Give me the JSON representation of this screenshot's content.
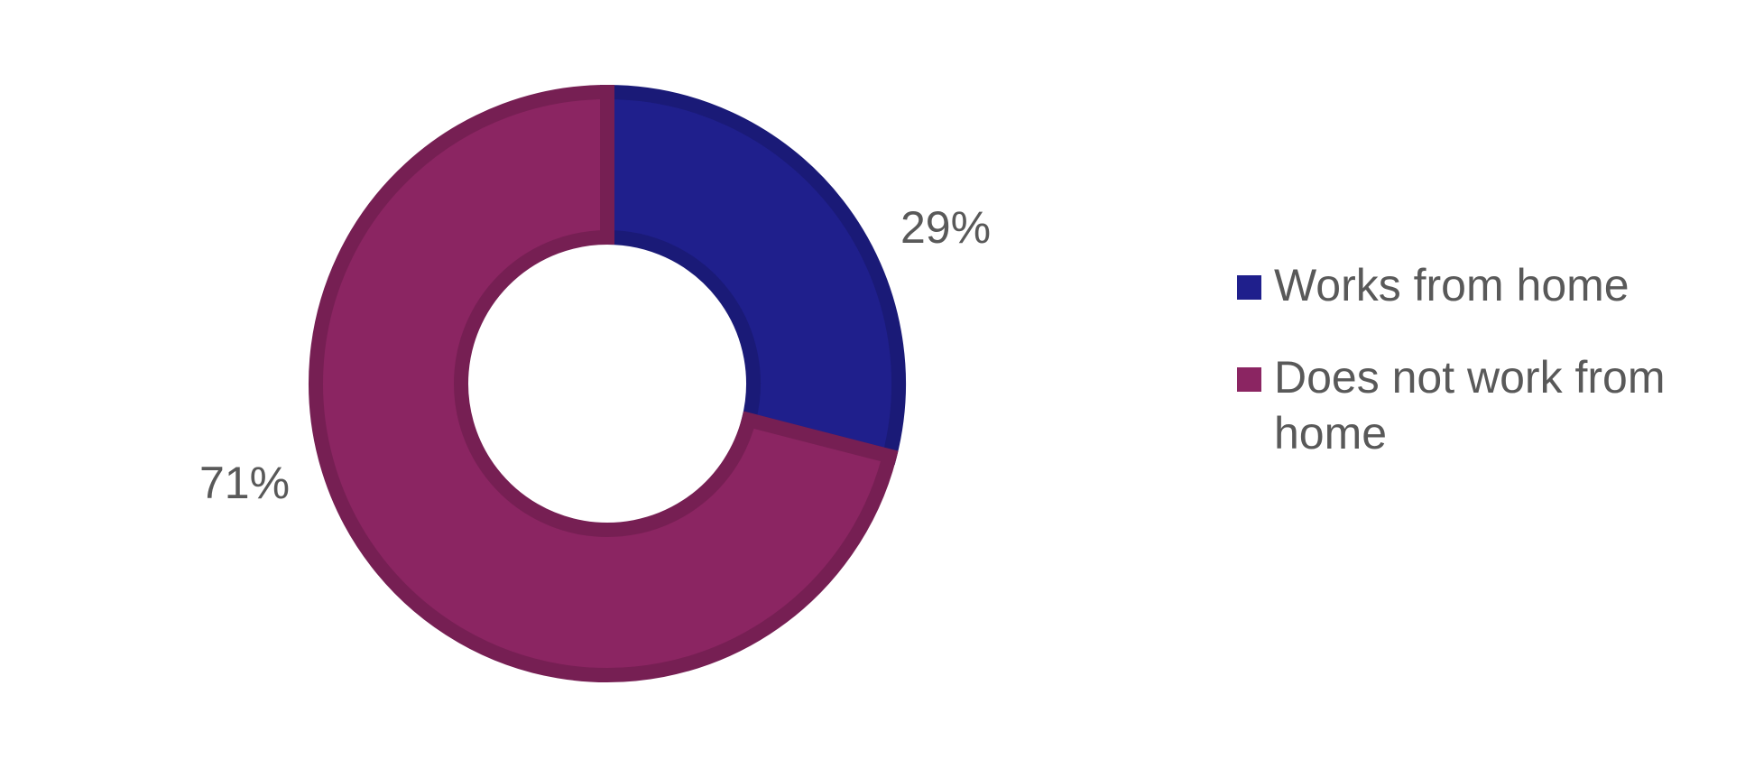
{
  "chart_data": {
    "type": "doughnut",
    "categories": [
      "Works from home",
      "Does not work from home"
    ],
    "values": [
      29,
      71
    ],
    "value_labels": [
      "29%",
      "71%"
    ],
    "colors": [
      "#1f1f8c",
      "#8b2562"
    ],
    "legend": "right"
  }
}
